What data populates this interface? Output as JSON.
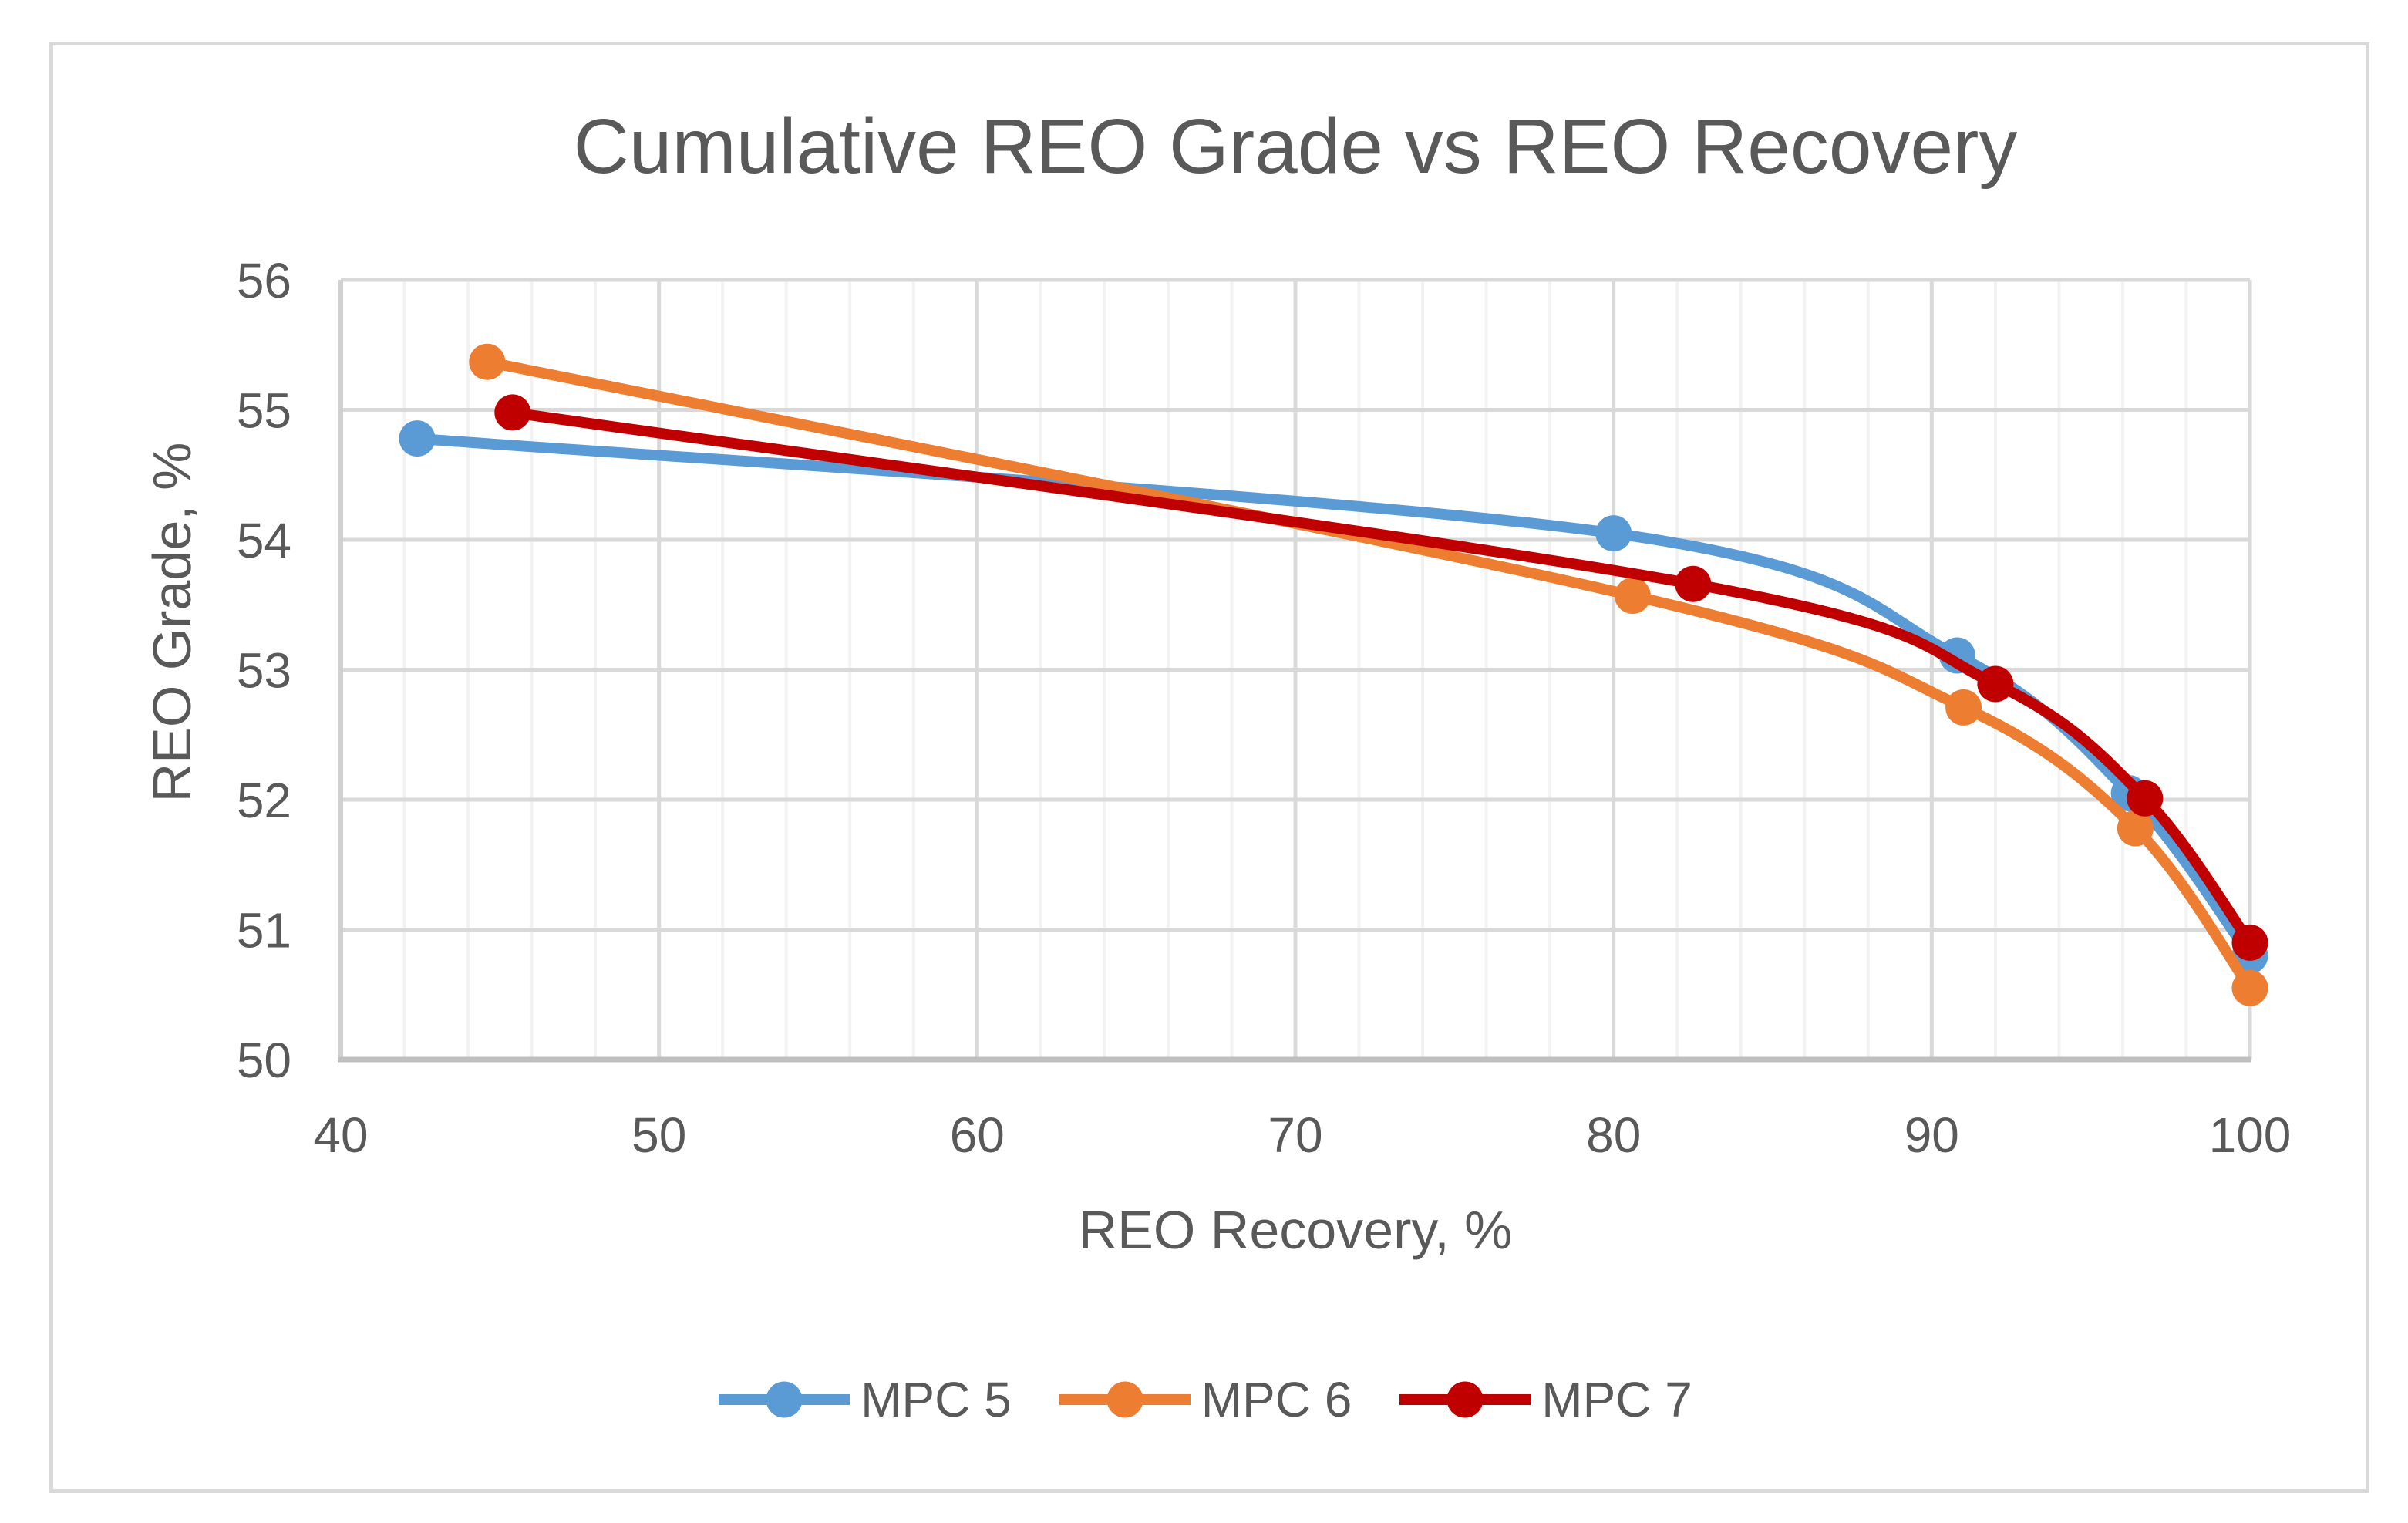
{
  "chart_data": {
    "type": "line",
    "title": "Cumulative REO Grade vs REO Recovery",
    "xlabel": "REO Recovery, %",
    "ylabel": "REO Grade, %",
    "xlim": [
      40,
      100
    ],
    "ylim": [
      50,
      56
    ],
    "x_ticks": [
      40,
      50,
      60,
      70,
      80,
      90,
      100
    ],
    "y_ticks": [
      50,
      51,
      52,
      53,
      54,
      55,
      56
    ],
    "x_minor_step": 2,
    "grid": true,
    "smooth_lines": true,
    "legend_position": "bottom",
    "series": [
      {
        "name": "MPC 5",
        "color": "#5B9BD5",
        "points": [
          [
            42.4,
            54.78
          ],
          [
            80.0,
            54.05
          ],
          [
            90.8,
            53.11
          ],
          [
            96.2,
            52.05
          ],
          [
            100.0,
            50.8
          ]
        ]
      },
      {
        "name": "MPC 6",
        "color": "#ED7D31",
        "points": [
          [
            44.6,
            55.37
          ],
          [
            80.6,
            53.57
          ],
          [
            91.0,
            52.71
          ],
          [
            96.4,
            51.78
          ],
          [
            100.0,
            50.55
          ]
        ]
      },
      {
        "name": "MPC 7",
        "color": "#C00000",
        "points": [
          [
            45.4,
            54.98
          ],
          [
            82.5,
            53.66
          ],
          [
            92.0,
            52.89
          ],
          [
            96.7,
            52.01
          ],
          [
            100.0,
            50.9
          ]
        ]
      }
    ],
    "colors": {
      "grid_major": "#D9D9D9",
      "grid_minor": "#F2F2F2",
      "axis_line": "#BFBFBF",
      "left_axis_line": "#D0D0D0",
      "text": "#595959",
      "panel_border": "#D9D9D9",
      "background": "#FFFFFF"
    }
  }
}
